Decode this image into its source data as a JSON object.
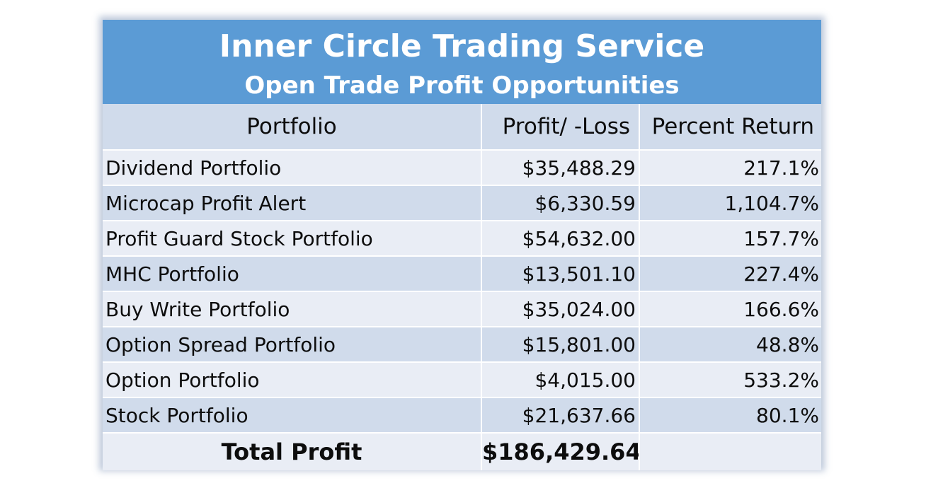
{
  "header": {
    "title": "Inner Circle Trading Service",
    "subtitle": "Open Trade Profit Opportunities"
  },
  "table": {
    "columns": [
      "Portfolio",
      "Profit/ -Loss",
      "Percent Return"
    ],
    "rows": [
      {
        "portfolio": "Dividend Portfolio",
        "profit": "$35,488.29",
        "percent": "217.1%"
      },
      {
        "portfolio": "Microcap Profit Alert",
        "profit": "$6,330.59",
        "percent": "1,104.7%"
      },
      {
        "portfolio": "Profit Guard Stock Portfolio",
        "profit": "$54,632.00",
        "percent": "157.7%"
      },
      {
        "portfolio": "MHC Portfolio",
        "profit": "$13,501.10",
        "percent": "227.4%"
      },
      {
        "portfolio": "Buy Write Portfolio",
        "profit": "$35,024.00",
        "percent": "166.6%"
      },
      {
        "portfolio": "Option Spread Portfolio",
        "profit": "$15,801.00",
        "percent": "48.8%"
      },
      {
        "portfolio": "Option Portfolio",
        "profit": "$4,015.00",
        "percent": "533.2%"
      },
      {
        "portfolio": "Stock Portfolio",
        "profit": "$21,637.66",
        "percent": "80.1%"
      }
    ],
    "total": {
      "label": "Total Profit",
      "profit": "$186,429.64",
      "percent": ""
    }
  },
  "colors": {
    "header_band": "#5b9bd5",
    "row_light": "#e9edf5",
    "row_dark": "#d0dbeb"
  }
}
